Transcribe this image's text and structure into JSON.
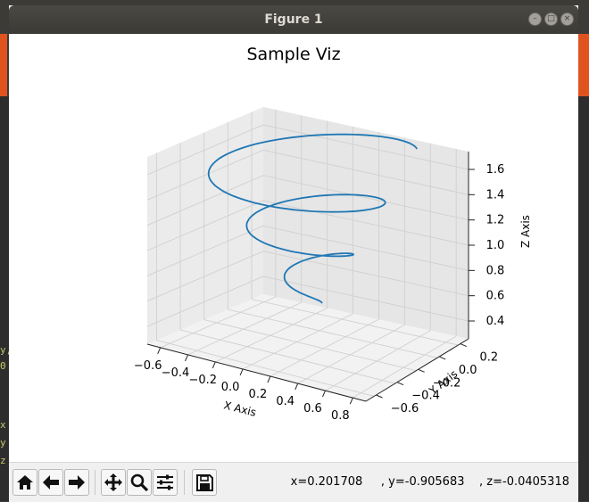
{
  "window": {
    "title": "Figure 1"
  },
  "plot": {
    "title": "Sample Viz"
  },
  "toolbar": {
    "buttons": [
      "home-icon",
      "back-icon",
      "forward-icon",
      "pan-icon",
      "zoom-icon",
      "configure-icon",
      "save-icon"
    ],
    "coordinate_readout": "x=0.201708     , y=-0.905683    , z=-0.0405318"
  },
  "chart_data": {
    "type": "line",
    "projection": "3d",
    "title": "Sample Viz",
    "xlabel": "X Axis",
    "ylabel": "Y Axis",
    "zlabel": "Z Axis",
    "x_ticks": [
      "−0.6",
      "−0.4",
      "−0.2",
      "0.0",
      "0.2",
      "0.4",
      "0.6",
      "0.8"
    ],
    "y_ticks": [
      "−0.6",
      "−0.4",
      "−0.2",
      "0.0",
      "0.2"
    ],
    "z_ticks": [
      "0.4",
      "0.6",
      "0.8",
      "1.0",
      "1.2",
      "1.4",
      "1.6"
    ],
    "grid": true,
    "series": [
      {
        "color": "#1f77b4",
        "description": "helix of increasing radius rising from z≈0.35 to z≈1.7"
      }
    ]
  },
  "background_terminal": {
    "fragments": [
      "y,",
      "0",
      "x",
      "y",
      "z"
    ]
  }
}
